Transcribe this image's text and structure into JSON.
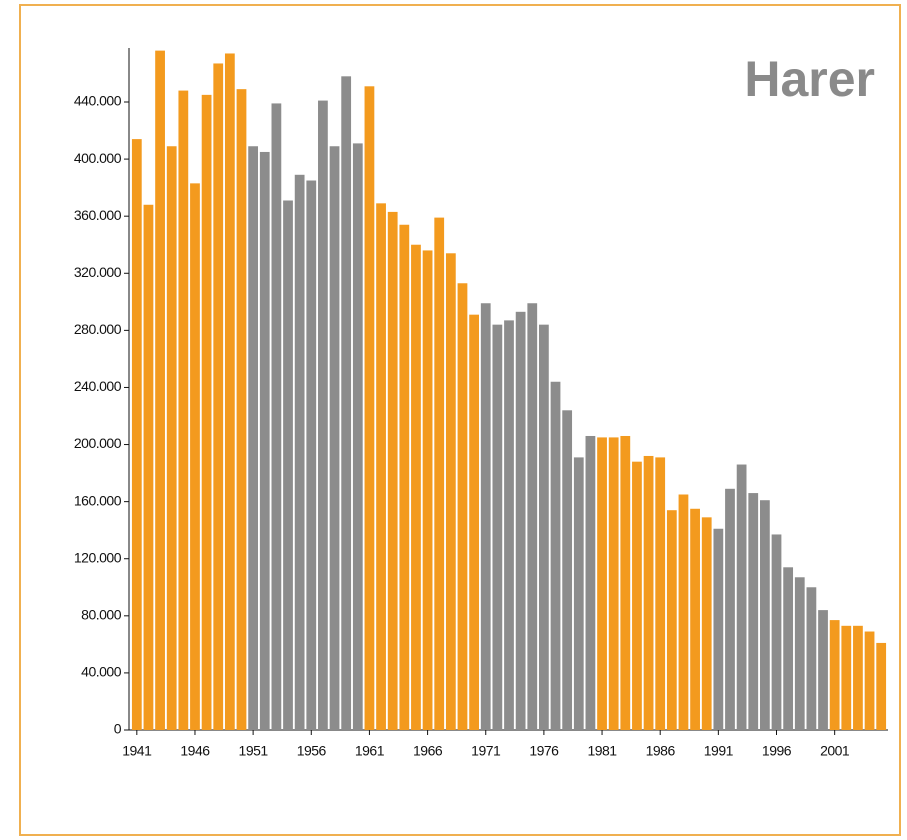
{
  "chart_data": {
    "type": "bar",
    "title": "Harer",
    "categories": [
      "1941",
      null,
      null,
      null,
      null,
      "1946",
      null,
      null,
      null,
      null,
      "1951",
      null,
      null,
      null,
      null,
      "1956",
      null,
      null,
      null,
      null,
      "1961",
      null,
      null,
      null,
      null,
      "1966",
      null,
      null,
      null,
      null,
      "1971",
      null,
      null,
      null,
      null,
      "1976",
      null,
      null,
      null,
      null,
      "1981",
      null,
      null,
      null,
      null,
      "1986",
      null,
      null,
      null,
      null,
      "1991",
      null,
      null,
      null,
      null,
      "1996",
      null,
      null,
      null,
      null,
      "2001",
      null,
      null,
      null,
      null
    ],
    "values": [
      414000,
      368000,
      476000,
      409000,
      448000,
      383000,
      445000,
      467000,
      474000,
      449000,
      409000,
      405000,
      439000,
      371000,
      389000,
      385000,
      441000,
      409000,
      458000,
      411000,
      451000,
      369000,
      363000,
      354000,
      340000,
      336000,
      359000,
      334000,
      313000,
      291000,
      299000,
      284000,
      287000,
      293000,
      299000,
      284000,
      244000,
      224000,
      191000,
      206000,
      205000,
      205000,
      206000,
      188000,
      192000,
      191000,
      154000,
      165000,
      155000,
      149000,
      141000,
      169000,
      186000,
      166000,
      161000,
      137000,
      114000,
      107000,
      100000,
      84000,
      77000,
      73000,
      73000,
      69000,
      61000
    ],
    "colors": [
      "#f39a1e",
      "#f39a1e",
      "#f39a1e",
      "#f39a1e",
      "#f39a1e",
      "#f39a1e",
      "#f39a1e",
      "#f39a1e",
      "#f39a1e",
      "#f39a1e",
      "#8c8c8c",
      "#8c8c8c",
      "#8c8c8c",
      "#8c8c8c",
      "#8c8c8c",
      "#8c8c8c",
      "#8c8c8c",
      "#8c8c8c",
      "#8c8c8c",
      "#8c8c8c",
      "#f39a1e",
      "#f39a1e",
      "#f39a1e",
      "#f39a1e",
      "#f39a1e",
      "#f39a1e",
      "#f39a1e",
      "#f39a1e",
      "#f39a1e",
      "#f39a1e",
      "#8c8c8c",
      "#8c8c8c",
      "#8c8c8c",
      "#8c8c8c",
      "#8c8c8c",
      "#8c8c8c",
      "#8c8c8c",
      "#8c8c8c",
      "#8c8c8c",
      "#8c8c8c",
      "#f39a1e",
      "#f39a1e",
      "#f39a1e",
      "#f39a1e",
      "#f39a1e",
      "#f39a1e",
      "#f39a1e",
      "#f39a1e",
      "#f39a1e",
      "#f39a1e",
      "#8c8c8c",
      "#8c8c8c",
      "#8c8c8c",
      "#8c8c8c",
      "#8c8c8c",
      "#8c8c8c",
      "#8c8c8c",
      "#8c8c8c",
      "#8c8c8c",
      "#8c8c8c",
      "#f39a1e",
      "#f39a1e",
      "#f39a1e",
      "#f39a1e",
      "#f39a1e"
    ],
    "ylim": [
      0,
      475000
    ],
    "yticks": [
      0,
      {
        "value": 40000,
        "label": "40.000"
      },
      {
        "value": 80000,
        "label": "80.000"
      },
      {
        "value": 120000,
        "label": "120.000"
      },
      {
        "value": 160000,
        "label": "160.000"
      },
      {
        "value": 200000,
        "label": "200.000"
      },
      {
        "value": 240000,
        "label": "240.000"
      },
      {
        "value": 280000,
        "label": "280.000"
      },
      {
        "value": 320000,
        "label": "320.000"
      },
      {
        "value": 360000,
        "label": "360.000"
      },
      {
        "value": 400000,
        "label": "400.000"
      },
      {
        "value": 440000,
        "label": "440.000"
      }
    ],
    "grid": false
  }
}
